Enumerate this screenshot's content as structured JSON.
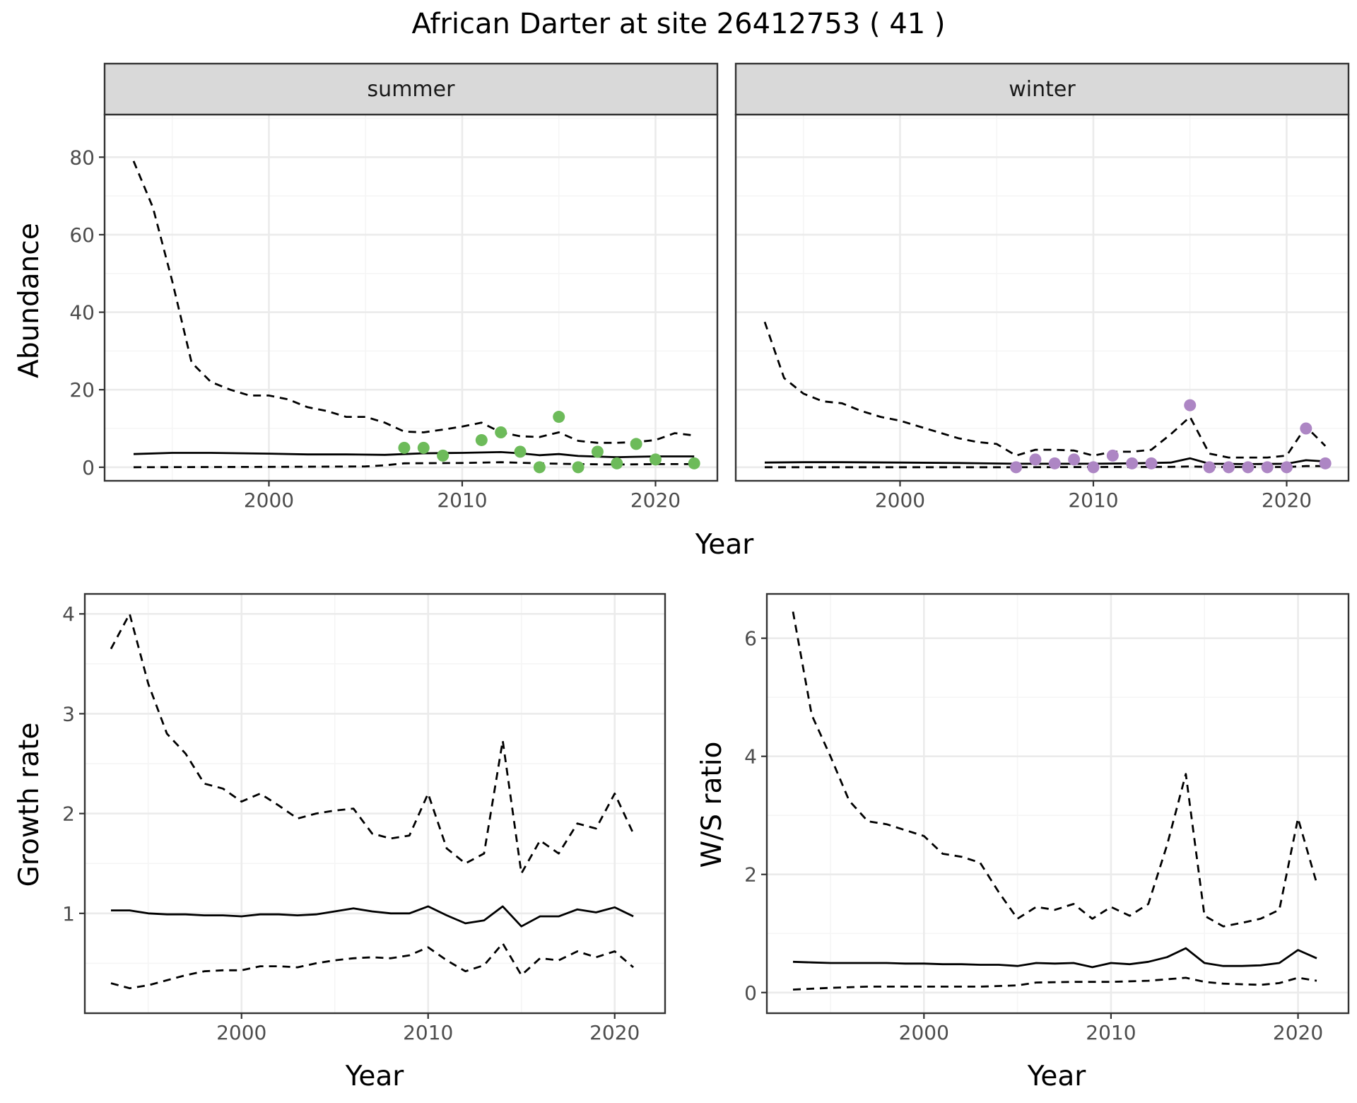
{
  "figure": {
    "title": "African Darter at site 26412753 ( 41 )"
  },
  "colors": {
    "summer_points": "#6dbb5a",
    "winter_points": "#ad86c4",
    "strip_fill": "#d9d9d9",
    "grid_major": "#ebebeb",
    "grid_minor": "#f5f5f5",
    "line": "#000000"
  },
  "chart_data": [
    {
      "type": "line",
      "panel": "summer",
      "strip_label": "summer",
      "xlabel": "Year",
      "ylabel": "Abundance",
      "xlim": [
        1991.5,
        2023.2
      ],
      "ylim": [
        -3.5,
        91
      ],
      "xticks": [
        2000,
        2010,
        2020
      ],
      "yticks": [
        0,
        20,
        40,
        60,
        80
      ],
      "grid": true,
      "series": [
        {
          "role": "estimate",
          "style": "solid",
          "x": [
            1993,
            1995,
            1997,
            2000,
            2002,
            2004,
            2006,
            2008,
            2010,
            2012,
            2013,
            2014,
            2015,
            2016,
            2018,
            2020,
            2022
          ],
          "y": [
            3.4,
            3.7,
            3.7,
            3.5,
            3.3,
            3.3,
            3.2,
            3.6,
            3.7,
            3.9,
            3.6,
            3.1,
            3.4,
            2.9,
            2.6,
            2.8,
            2.8
          ]
        },
        {
          "role": "upper",
          "style": "dashed",
          "x": [
            1993,
            1994,
            1995,
            1996,
            1997,
            1998,
            1999,
            2000,
            2001,
            2002,
            2003,
            2004,
            2005,
            2006,
            2007,
            2008,
            2009,
            2010,
            2011,
            2012,
            2013,
            2014,
            2015,
            2016,
            2017,
            2018,
            2019,
            2020,
            2021,
            2022
          ],
          "y": [
            79,
            67,
            48,
            27,
            22,
            20,
            18.5,
            18.5,
            17.5,
            15.5,
            14.5,
            13,
            13,
            11.5,
            9.2,
            9.0,
            9.7,
            10.5,
            11.5,
            9.0,
            8.0,
            7.8,
            9.0,
            6.8,
            6.3,
            6.3,
            6.5,
            7.0,
            8.8,
            8.2
          ]
        },
        {
          "role": "lower",
          "style": "dashed",
          "x": [
            1993,
            2000,
            2005,
            2006,
            2007,
            2010,
            2012,
            2014,
            2016,
            2018,
            2020,
            2022
          ],
          "y": [
            0,
            0.1,
            0.2,
            0.5,
            1.0,
            1.1,
            1.3,
            1.0,
            0.8,
            0.7,
            0.8,
            0.8
          ]
        }
      ],
      "points": {
        "x": [
          2007,
          2008,
          2009,
          2011,
          2012,
          2013,
          2014,
          2015,
          2016,
          2017,
          2018,
          2019,
          2020,
          2022
        ],
        "y": [
          5,
          5,
          3,
          7,
          9,
          4,
          0,
          13,
          0,
          4,
          1,
          6,
          2,
          1
        ]
      }
    },
    {
      "type": "line",
      "panel": "winter",
      "strip_label": "winter",
      "xlabel": "Year",
      "ylabel": "Abundance",
      "xlim": [
        1991.5,
        2023.2
      ],
      "ylim": [
        -3.5,
        91
      ],
      "xticks": [
        2000,
        2010,
        2020
      ],
      "yticks": [
        0,
        20,
        40,
        60,
        80
      ],
      "grid": true,
      "series": [
        {
          "role": "estimate",
          "style": "solid",
          "x": [
            1993,
            1995,
            1997,
            2000,
            2003,
            2006,
            2008,
            2010,
            2012,
            2014,
            2015,
            2016,
            2018,
            2020,
            2021,
            2022
          ],
          "y": [
            1.2,
            1.3,
            1.3,
            1.2,
            1.1,
            0.9,
            0.9,
            0.9,
            1.0,
            1.2,
            2.3,
            0.9,
            0.8,
            0.9,
            1.8,
            1.5
          ]
        },
        {
          "role": "upper",
          "style": "dashed",
          "x": [
            1993,
            1994,
            1995,
            1996,
            1997,
            1998,
            1999,
            2000,
            2001,
            2002,
            2003,
            2004,
            2005,
            2006,
            2007,
            2008,
            2009,
            2010,
            2011,
            2012,
            2013,
            2014,
            2015,
            2016,
            2017,
            2018,
            2019,
            2020,
            2021,
            2022
          ],
          "y": [
            37.5,
            23,
            19,
            17,
            16.5,
            14.5,
            13,
            12,
            10.5,
            9,
            7.5,
            6.5,
            6,
            3,
            4.5,
            4.5,
            4.3,
            3,
            4.0,
            4.0,
            4.5,
            8.5,
            13,
            3.5,
            2.5,
            2.5,
            2.5,
            3,
            10.5,
            5.5
          ]
        },
        {
          "role": "lower",
          "style": "dashed",
          "x": [
            1993,
            2000,
            2006,
            2010,
            2014,
            2015,
            2016,
            2020,
            2021,
            2022
          ],
          "y": [
            0,
            0,
            0,
            0.05,
            0.1,
            0.2,
            0.05,
            0.05,
            0.3,
            0.3
          ]
        }
      ],
      "points": {
        "x": [
          2006,
          2007,
          2008,
          2009,
          2010,
          2011,
          2012,
          2013,
          2015,
          2016,
          2017,
          2018,
          2019,
          2020,
          2021,
          2022
        ],
        "y": [
          0,
          2,
          1,
          2,
          0,
          3,
          1,
          1,
          16,
          0,
          0,
          0,
          0,
          0,
          10,
          1
        ]
      }
    },
    {
      "type": "line",
      "panel": "growth",
      "xlabel": "Year",
      "ylabel": "Growth rate",
      "xlim": [
        1991.6,
        2022.7
      ],
      "ylim": [
        0.0,
        4.2
      ],
      "xticks": [
        2000,
        2010,
        2020
      ],
      "yticks": [
        1,
        2,
        3,
        4
      ],
      "grid": true,
      "series": [
        {
          "role": "estimate",
          "style": "solid",
          "x": [
            1993,
            1994,
            1995,
            1996,
            1997,
            1998,
            1999,
            2000,
            2001,
            2002,
            2003,
            2004,
            2005,
            2006,
            2007,
            2008,
            2009,
            2010,
            2011,
            2012,
            2013,
            2014,
            2015,
            2016,
            2017,
            2018,
            2019,
            2020,
            2021
          ],
          "y": [
            1.03,
            1.03,
            1.0,
            0.99,
            0.99,
            0.98,
            0.98,
            0.97,
            0.99,
            0.99,
            0.98,
            0.99,
            1.02,
            1.05,
            1.02,
            1.0,
            1.0,
            1.07,
            0.98,
            0.9,
            0.93,
            1.07,
            0.87,
            0.97,
            0.97,
            1.04,
            1.01,
            1.06,
            0.97
          ]
        },
        {
          "role": "upper",
          "style": "dashed",
          "x": [
            1993,
            1994,
            1995,
            1996,
            1997,
            1998,
            1999,
            2000,
            2001,
            2002,
            2003,
            2004,
            2005,
            2006,
            2007,
            2008,
            2009,
            2010,
            2011,
            2012,
            2013,
            2014,
            2015,
            2016,
            2017,
            2018,
            2019,
            2020,
            2021
          ],
          "y": [
            3.65,
            4.0,
            3.3,
            2.8,
            2.6,
            2.3,
            2.25,
            2.12,
            2.2,
            2.08,
            1.95,
            2.0,
            2.03,
            2.05,
            1.8,
            1.75,
            1.78,
            2.2,
            1.65,
            1.5,
            1.6,
            2.73,
            1.4,
            1.73,
            1.6,
            1.9,
            1.85,
            2.2,
            1.8
          ]
        },
        {
          "role": "lower",
          "style": "dashed",
          "x": [
            1993,
            1994,
            1995,
            1996,
            1997,
            1998,
            1999,
            2000,
            2001,
            2002,
            2003,
            2004,
            2005,
            2006,
            2007,
            2008,
            2009,
            2010,
            2011,
            2012,
            2013,
            2014,
            2015,
            2016,
            2017,
            2018,
            2019,
            2020,
            2021
          ],
          "y": [
            0.3,
            0.25,
            0.28,
            0.33,
            0.38,
            0.42,
            0.43,
            0.43,
            0.47,
            0.47,
            0.46,
            0.5,
            0.53,
            0.55,
            0.56,
            0.55,
            0.58,
            0.66,
            0.53,
            0.42,
            0.48,
            0.7,
            0.38,
            0.55,
            0.53,
            0.62,
            0.56,
            0.62,
            0.46
          ]
        }
      ]
    },
    {
      "type": "line",
      "panel": "ws_ratio",
      "xlabel": "Year",
      "ylabel": "W/S ratio",
      "xlim": [
        1991.6,
        2022.7
      ],
      "ylim": [
        -0.35,
        6.75
      ],
      "xticks": [
        2000,
        2010,
        2020
      ],
      "yticks": [
        0,
        2,
        4,
        6
      ],
      "grid": true,
      "series": [
        {
          "role": "estimate",
          "style": "solid",
          "x": [
            1993,
            1994,
            1995,
            1996,
            1997,
            1998,
            1999,
            2000,
            2001,
            2002,
            2003,
            2004,
            2005,
            2006,
            2007,
            2008,
            2009,
            2010,
            2011,
            2012,
            2013,
            2014,
            2015,
            2016,
            2017,
            2018,
            2019,
            2020,
            2021
          ],
          "y": [
            0.52,
            0.51,
            0.5,
            0.5,
            0.5,
            0.5,
            0.49,
            0.49,
            0.48,
            0.48,
            0.47,
            0.47,
            0.45,
            0.5,
            0.49,
            0.5,
            0.43,
            0.5,
            0.48,
            0.52,
            0.6,
            0.75,
            0.5,
            0.45,
            0.45,
            0.46,
            0.5,
            0.72,
            0.58
          ]
        },
        {
          "role": "upper",
          "style": "dashed",
          "x": [
            1993,
            1994,
            1995,
            1996,
            1997,
            1998,
            1999,
            2000,
            2001,
            2002,
            2003,
            2004,
            2005,
            2006,
            2007,
            2008,
            2009,
            2010,
            2011,
            2012,
            2013,
            2014,
            2015,
            2016,
            2017,
            2018,
            2019,
            2020,
            2021
          ],
          "y": [
            6.45,
            4.7,
            4.0,
            3.25,
            2.9,
            2.85,
            2.75,
            2.65,
            2.35,
            2.3,
            2.2,
            1.7,
            1.25,
            1.45,
            1.4,
            1.5,
            1.25,
            1.45,
            1.3,
            1.5,
            2.5,
            3.7,
            1.3,
            1.12,
            1.18,
            1.25,
            1.4,
            2.95,
            1.85
          ]
        },
        {
          "role": "lower",
          "style": "dashed",
          "x": [
            1993,
            1995,
            1997,
            2000,
            2003,
            2005,
            2006,
            2008,
            2010,
            2012,
            2014,
            2015,
            2016,
            2018,
            2019,
            2020,
            2021
          ],
          "y": [
            0.05,
            0.08,
            0.1,
            0.1,
            0.1,
            0.12,
            0.17,
            0.18,
            0.18,
            0.2,
            0.25,
            0.18,
            0.15,
            0.13,
            0.16,
            0.25,
            0.2
          ]
        }
      ]
    }
  ]
}
